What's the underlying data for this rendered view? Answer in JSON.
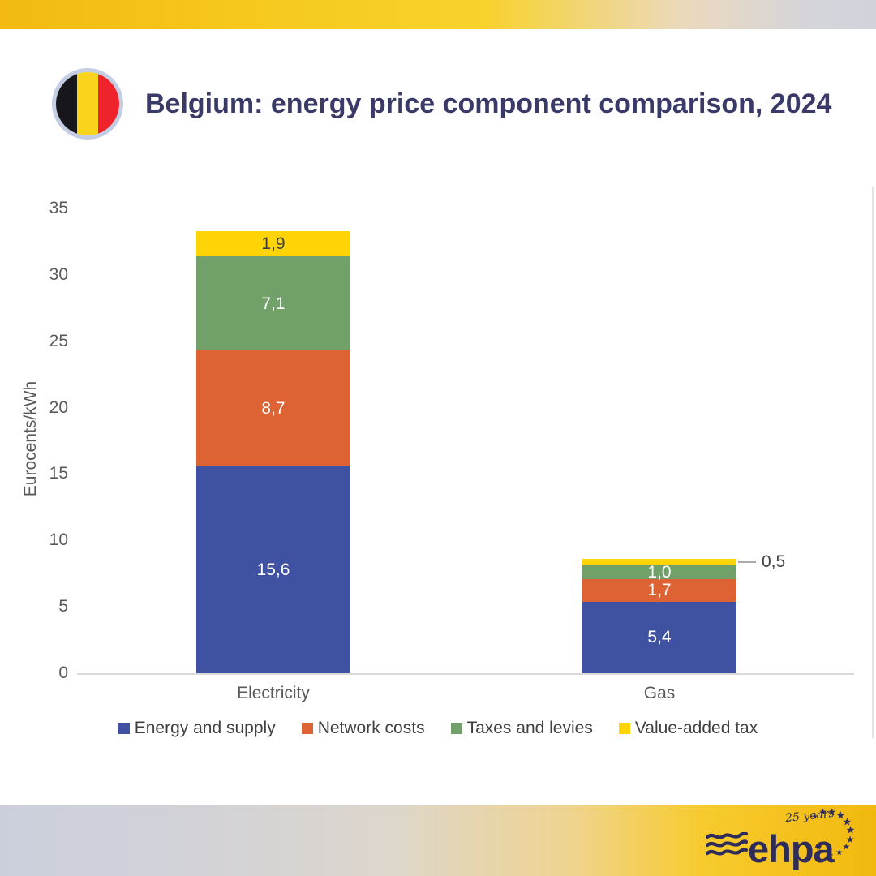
{
  "header": {
    "title": "Belgium: energy price component comparison, 2024"
  },
  "flag": {
    "country": "Belgium",
    "stripe_colors": [
      "#17161B",
      "#FAD31C",
      "#EE232C"
    ],
    "ring_color": "#C3CEE4"
  },
  "chart_data": {
    "type": "bar",
    "stacked": true,
    "title": "Belgium: energy price component comparison, 2024",
    "ylabel": "Eurocents/kWh",
    "xlabel": "",
    "ylim": [
      0,
      35
    ],
    "ytick_step": 5,
    "grid": false,
    "legend_position": "bottom",
    "decimal_separator": ",",
    "categories": [
      "Electricity",
      "Gas"
    ],
    "series": [
      {
        "name": "Energy and supply",
        "color": "#3F51A1",
        "label_color": "#FFFFFF",
        "values": [
          15.6,
          5.4
        ]
      },
      {
        "name": "Network costs",
        "color": "#DD6234",
        "label_color": "#FFFFFF",
        "values": [
          8.7,
          1.7
        ]
      },
      {
        "name": "Taxes and levies",
        "color": "#72A069",
        "label_color": "#FFFFFF",
        "values": [
          7.1,
          1.0
        ]
      },
      {
        "name": "Value-added tax",
        "color": "#FFD406",
        "label_color": "#3F3F3F",
        "values": [
          1.9,
          0.5
        ]
      }
    ],
    "totals": [
      33.3,
      8.6
    ],
    "callout_labels": [
      "0,5"
    ]
  },
  "axis": {
    "text_color": "#595959",
    "line_color": "#D9D9D9"
  },
  "footer": {
    "logo_text": "ehpa",
    "anniversary": "25 years",
    "logo_color": "#2D2C5A"
  }
}
